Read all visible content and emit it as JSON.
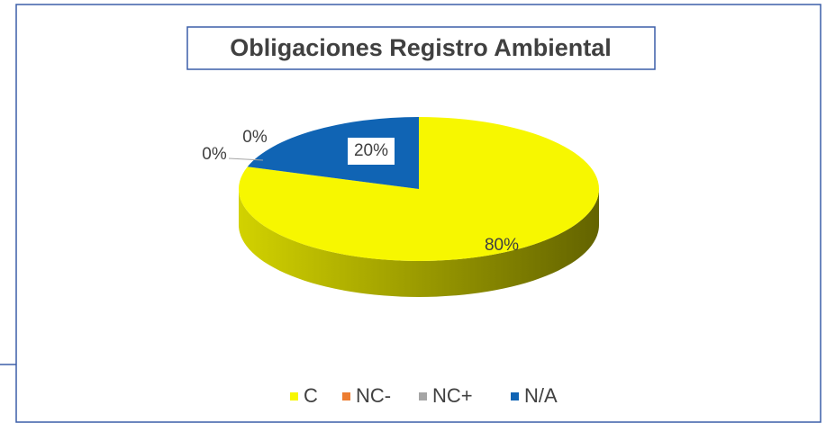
{
  "chart_data": {
    "type": "pie3d",
    "title": "Obligaciones Registro Ambiental",
    "categories": [
      "C",
      "NC-",
      "NC+",
      "N/A"
    ],
    "values": [
      80,
      0,
      0,
      20
    ],
    "value_labels": [
      "80%",
      "0%",
      "0%",
      "20%"
    ],
    "colors": [
      "#f7f700",
      "#ed7d31",
      "#a5a5a5",
      "#1064b4"
    ],
    "legend": "bottom"
  }
}
